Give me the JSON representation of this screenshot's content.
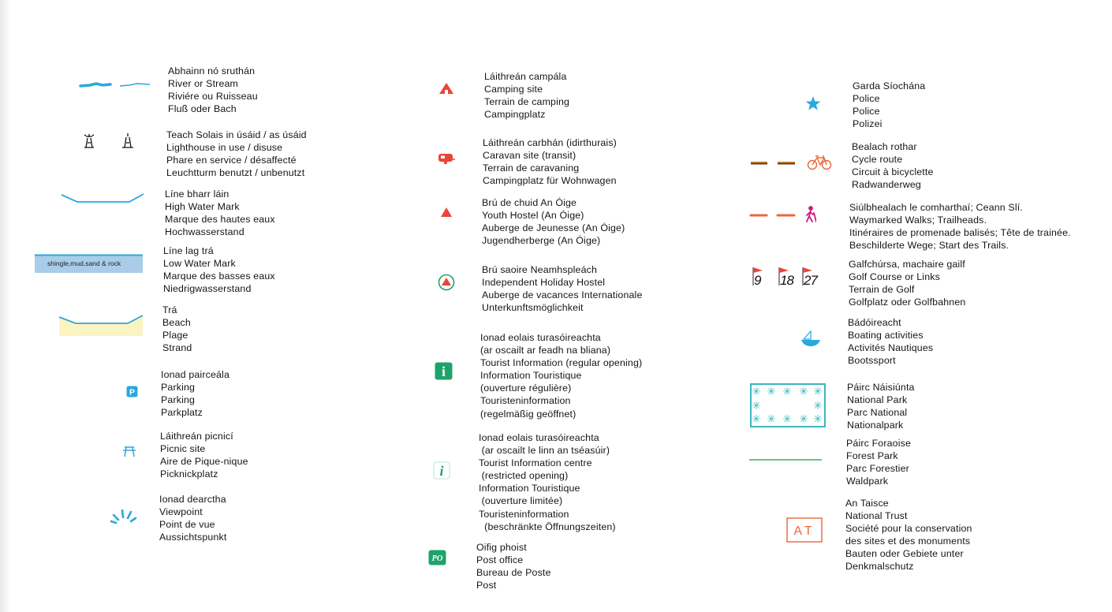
{
  "colors": {
    "water": "#2aa8dc",
    "lwm_fill": "#a9cde8",
    "beach": "#fbf4c0",
    "red": "#e8463a",
    "green": "#1ea36a",
    "teal": "#3bb7bf",
    "orange": "#e8683a",
    "magenta": "#d4177e",
    "forest": "#3aae63"
  },
  "columns": [
    {
      "entries": [
        {
          "icon": "river-icon",
          "lines": [
            "Abhainn nó sruthán",
            "River or Stream",
            "Riviére ou Ruisseau",
            "Fluß oder Bach"
          ]
        },
        {
          "icon": "lighthouse-icon",
          "lines": [
            "Teach Solais in úsáid / as úsáid",
            "Lighthouse in use / disuse",
            "Phare en service / désaffecté",
            "Leuchtturm benutzt / unbenutzt"
          ]
        },
        {
          "icon": "high-water-mark-icon",
          "lines": [
            "Líne bharr láin",
            "High Water Mark",
            "Marque des hautes eaux",
            "Hochwasserstand"
          ]
        },
        {
          "icon": "low-water-mark-icon",
          "icon_text": "shingle,mud,sand & rock",
          "lines": [
            "Líne lag trá",
            "Low Water Mark",
            "Marque des basses eaux",
            "Niedrigwasserstand"
          ]
        },
        {
          "icon": "beach-icon",
          "lines": [
            "Trá",
            "Beach",
            "Plage",
            "Strand"
          ]
        },
        {
          "icon": "parking-icon",
          "icon_text": "P",
          "lines": [
            "Ionad pairceála",
            "Parking",
            "Parking",
            "Parkplatz"
          ]
        },
        {
          "icon": "picnic-icon",
          "lines": [
            "Láithreán picnicí",
            "Picnic site",
            "Aire de Pique-nique",
            "Picknickplatz"
          ]
        },
        {
          "icon": "viewpoint-icon",
          "lines": [
            "Ionad dearctha",
            "Viewpoint",
            "Point de vue",
            "Aussichtspunkt"
          ]
        }
      ]
    },
    {
      "entries": [
        {
          "icon": "camping-icon",
          "lines": [
            "Láithreán campála",
            "Camping site",
            "Terrain de camping",
            "Campingplatz"
          ]
        },
        {
          "icon": "caravan-icon",
          "lines": [
            "Láithreán carbhán (idirthurais)",
            "Caravan site (transit)",
            "Terrain de caravaning",
            "Campingplatz für Wohnwagen"
          ]
        },
        {
          "icon": "youth-hostel-icon",
          "lines": [
            "Brú de chuid An Óige",
            "Youth Hostel (An Óige)",
            "Auberge de Jeunesse (An Óige)",
            "Jugendherberge (An Óige)"
          ]
        },
        {
          "icon": "independent-hostel-icon",
          "lines": [
            "Brú saoire Neamhspleách",
            "Independent Holiday Hostel",
            "Auberge de vacances Internationale",
            "Unterkunftsmöglichkeit"
          ]
        },
        {
          "icon": "tourist-info-regular-icon",
          "icon_text": "i",
          "lines": [
            "Ionad eolais turasóireachta",
            "(ar oscailt ar feadh na bliana)",
            "Tourist Information (regular opening)",
            "Information Touristique",
            "(ouverture régulière)",
            "Touristeninformation",
            "(regelmäßig geöffnet)"
          ]
        },
        {
          "icon": "tourist-info-restricted-icon",
          "icon_text": "i",
          "lines": [
            "Ionad eolais turasóireachta",
            " (ar oscailt le linn an tséasúir)",
            "Tourist Information centre",
            " (restricted opening)",
            "Information Touristique",
            " (ouverture limitée)",
            "Touristeninformation",
            "  (beschränkte Öffnungszeiten)"
          ]
        },
        {
          "icon": "post-office-icon",
          "icon_text": "PO",
          "lines": [
            "Oifig phoist",
            "Post office",
            "Bureau de Poste",
            "Post"
          ]
        }
      ]
    },
    {
      "entries": [
        {
          "icon": "police-star-icon",
          "lines": [
            "Garda Síochána",
            "Police",
            "Police",
            "Polizei"
          ]
        },
        {
          "icon": "cycle-route-icon",
          "lines": [
            "Bealach rothar",
            "Cycle route",
            "Circuit à bicyclette",
            "Radwanderweg"
          ]
        },
        {
          "icon": "waymarked-walk-icon",
          "lines": [
            "Siúlbhealach le comharthaí; Ceann Slí.",
            "Waymarked Walks; Trailheads.",
            "Itinéraires de promenade balisés; Tête de trainée.",
            "Beschilderte Wege; Start des Trails."
          ]
        },
        {
          "icon": "golf-icon",
          "icon_text": [
            "9",
            "18",
            "27"
          ],
          "lines": [
            "Galfchúrsa, machaire gailf",
            "Golf Course or Links",
            "Terrain de Golf",
            "Golfplatz oder Golfbahnen"
          ]
        },
        {
          "icon": "boating-icon",
          "lines": [
            "Bádóireacht",
            "Boating activities",
            "Activités Nautiques",
            "Bootssport"
          ]
        },
        {
          "icon": "national-park-icon",
          "lines": [
            "Páirc Náisiúnta",
            "National Park",
            "Parc National",
            "Nationalpark"
          ]
        },
        {
          "icon": "forest-park-icon",
          "lines": [
            "Páirc Foraoise",
            "Forest Park",
            "Parc Forestier",
            "Waldpark"
          ]
        },
        {
          "icon": "an-taisce-icon",
          "icon_text": "AT",
          "lines": [
            "An Taisce",
            "National Trust",
            "Société pour la conservation",
            "des sites et des monuments",
            "Bauten oder Gebiete unter",
            "Denkmalschutz"
          ]
        }
      ]
    }
  ]
}
